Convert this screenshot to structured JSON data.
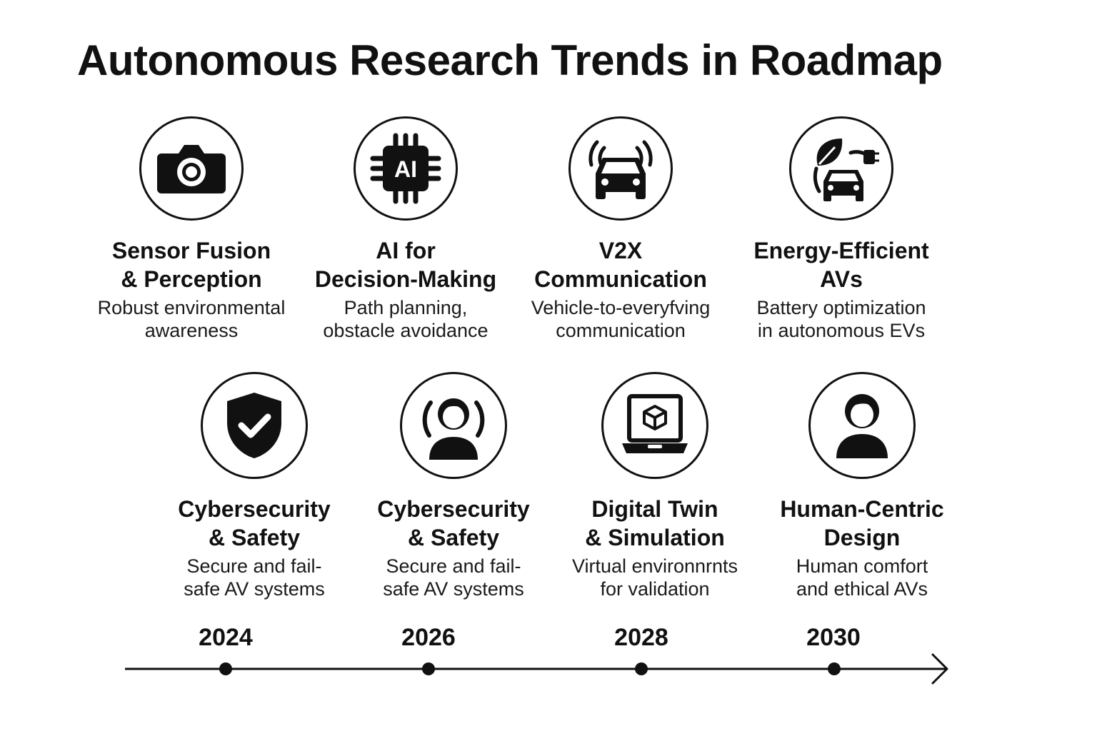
{
  "title": "Autonomous Research Trends in Roadmap",
  "trends": [
    {
      "icon": "camera-icon",
      "title_lines": [
        "Sensor Fusion",
        "& Perception"
      ],
      "desc_lines": [
        "Robust environmental",
        "awareness"
      ]
    },
    {
      "icon": "ai-chip-icon",
      "chip_label": "AI",
      "title_lines": [
        "AI for",
        "Decision-Making"
      ],
      "desc_lines": [
        "Path planning,",
        "obstacle avoidance"
      ]
    },
    {
      "icon": "connected-car-icon",
      "title_lines": [
        "V2X",
        "Communication"
      ],
      "desc_lines": [
        "Vehicle-to-everyfving",
        "communication"
      ]
    },
    {
      "icon": "eco-electric-car-icon",
      "title_lines": [
        "Energy-Efficient",
        "AVs"
      ],
      "desc_lines": [
        "Battery optimization",
        "in autonomous EVs"
      ]
    },
    {
      "icon": "shield-check-icon",
      "title_lines": [
        "Cybersecurity",
        "& Safety"
      ],
      "desc_lines": [
        "Secure and fail-",
        "safe AV systems"
      ]
    },
    {
      "icon": "person-signal-icon",
      "title_lines": [
        "Cybersecurity",
        "& Safety"
      ],
      "desc_lines": [
        "Secure and fail-",
        "safe AV systems"
      ]
    },
    {
      "icon": "laptop-cube-icon",
      "title_lines": [
        "Digital Twin",
        "& Simulation"
      ],
      "desc_lines": [
        "Virtual environnrnts",
        "for validation"
      ]
    },
    {
      "icon": "person-icon",
      "title_lines": [
        "Human-Centric",
        "Design"
      ],
      "desc_lines": [
        "Human comfort",
        "and ethical AVs"
      ]
    }
  ],
  "timeline": {
    "years": [
      "2024",
      "2026",
      "2028",
      "2030"
    ]
  }
}
